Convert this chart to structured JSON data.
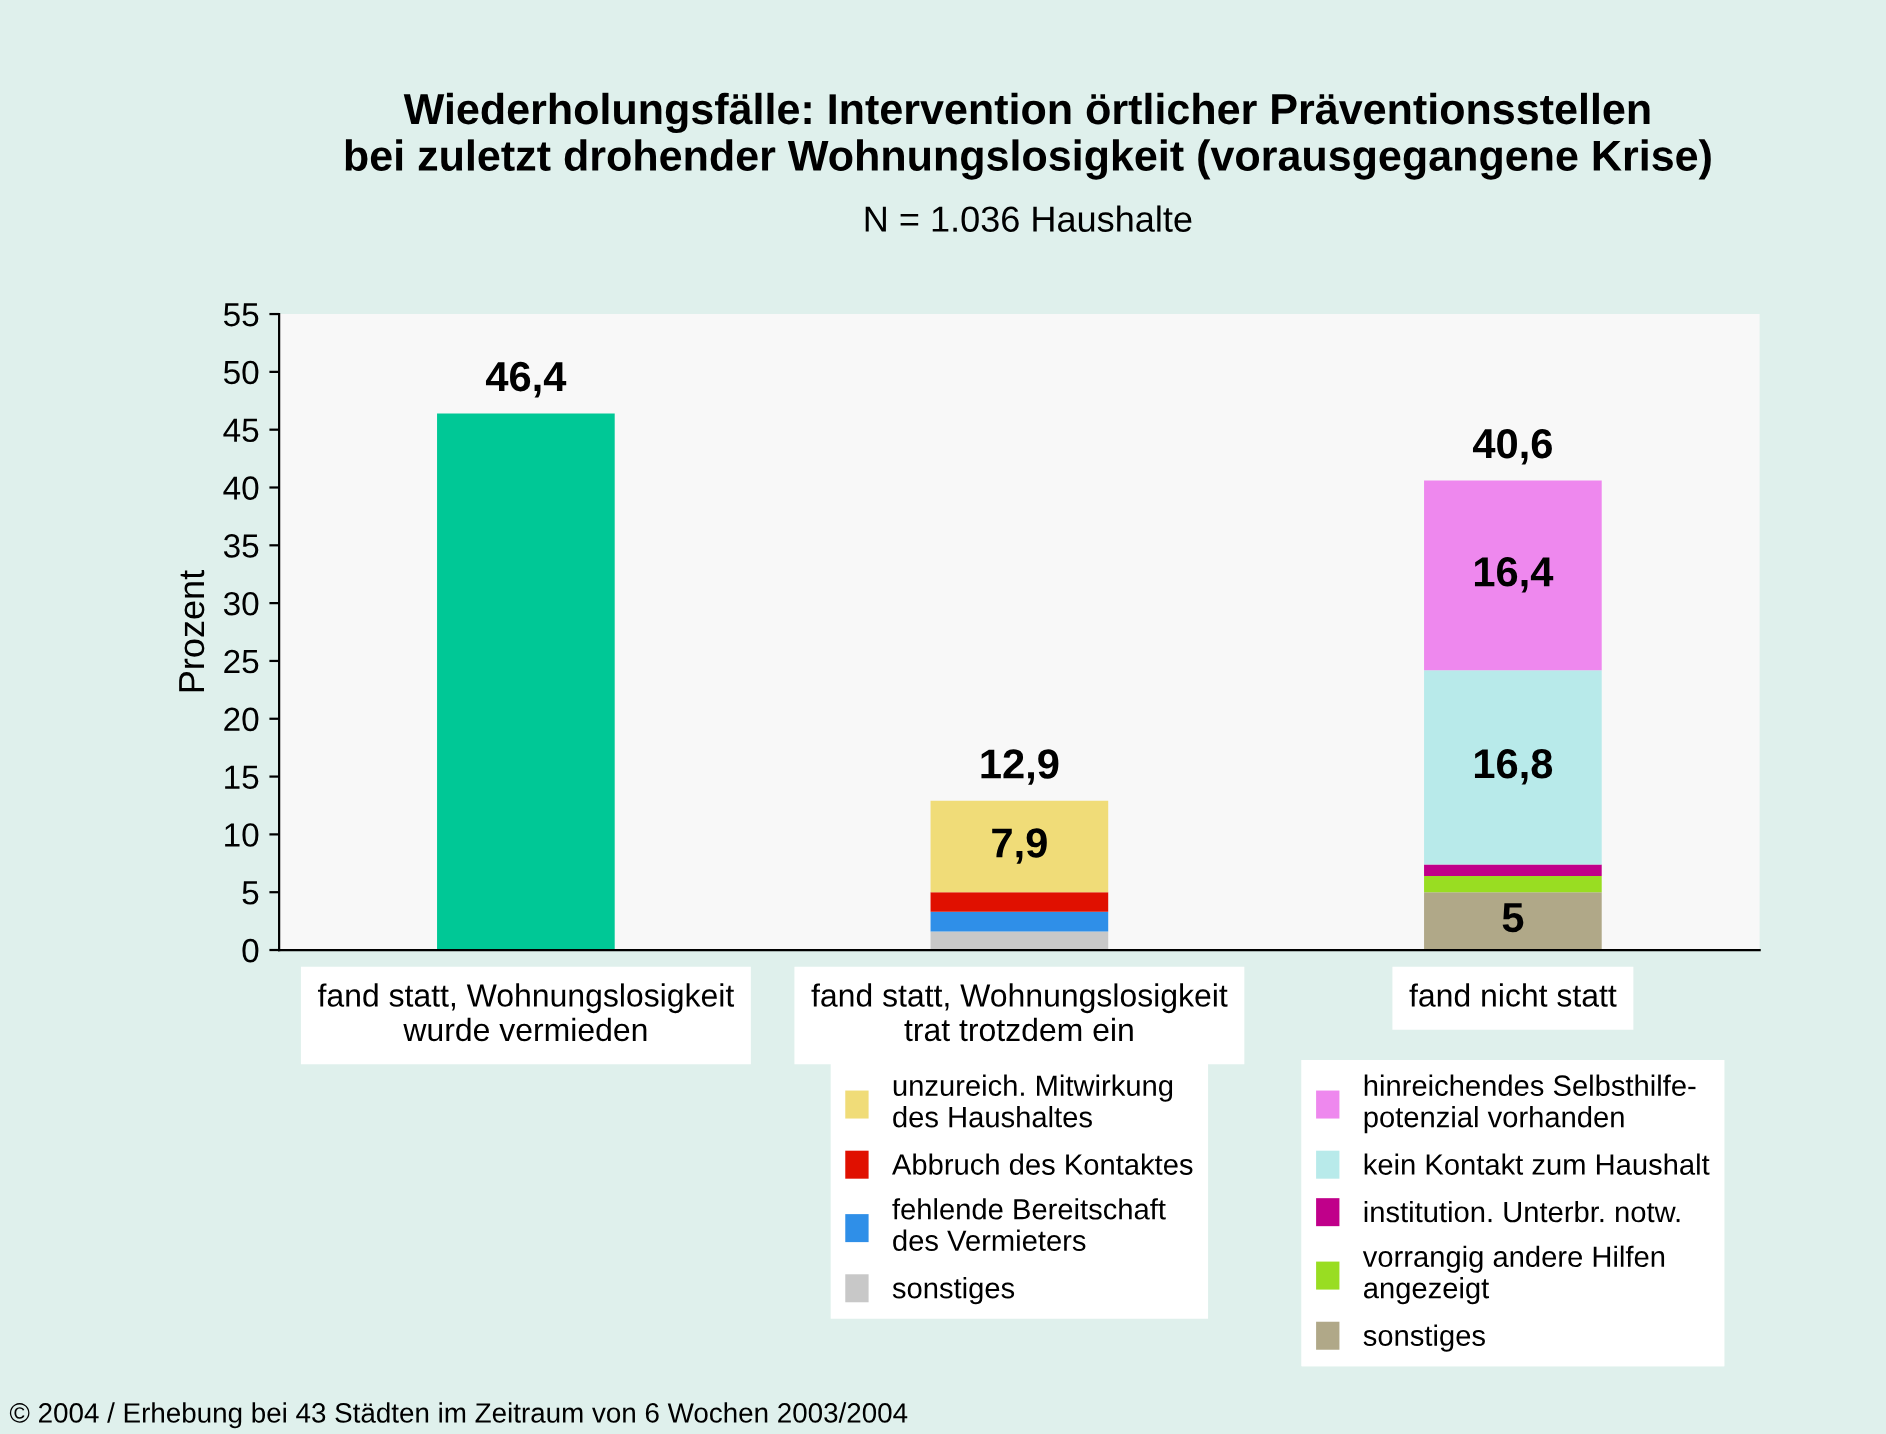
{
  "chart_data": {
    "type": "bar",
    "stacked": true,
    "title": "Wiederholungsfälle: Intervention örtlicher Präventionsstellen\nbei zuletzt drohender Wohnungslosigkeit (vorausgegangene Krise)",
    "subtitle": "N = 1.036 Haushalte",
    "ylabel": "Prozent",
    "categories": [
      "fand statt, Wohnungslosigkeit\nwurde vermieden",
      "fand statt, Wohnungslosigkeit\ntrat trotzdem ein",
      "fand nicht statt"
    ],
    "series": [
      {
        "color": "#00c896",
        "values": [
          46.4,
          null,
          null
        ]
      },
      {
        "name": "sonstiges",
        "color": "#c8c8c8",
        "values": [
          null,
          1.6,
          null
        ]
      },
      {
        "name": "fehlende Bereitschaft\ndes Vermieters",
        "color": "#2f8fe8",
        "values": [
          null,
          1.7,
          null
        ]
      },
      {
        "name": "Abbruch des Kontaktes",
        "color": "#e01000",
        "values": [
          null,
          1.7,
          null
        ]
      },
      {
        "name": "unzureich. Mitwirkung\ndes Haushaltes",
        "color": "#f0dc78",
        "values": [
          null,
          7.9,
          null
        ],
        "value_labels": [
          null,
          "7,9",
          null
        ]
      },
      {
        "name": "sonstiges",
        "color": "#b0a888",
        "values": [
          null,
          null,
          5
        ],
        "value_labels": [
          null,
          null,
          "5"
        ]
      },
      {
        "name": "vorrangig andere Hilfen\nangezeigt",
        "color": "#99dd22",
        "values": [
          null,
          null,
          1.4
        ]
      },
      {
        "name": "institution. Unterbr. notw.",
        "color": "#c0008a",
        "values": [
          null,
          null,
          1.0
        ]
      },
      {
        "name": "kein Kontakt zum Haushalt",
        "color": "#b8eaea",
        "values": [
          null,
          null,
          16.8
        ],
        "value_labels": [
          null,
          null,
          "16,8"
        ]
      },
      {
        "name": "hinreichendes Selbsthilfe-\npotenzial vorhanden",
        "color": "#ee88ee",
        "values": [
          null,
          null,
          16.4
        ],
        "value_labels": [
          null,
          null,
          "16,4"
        ]
      }
    ],
    "totals": [
      "46,4",
      "12,9",
      "40,6"
    ],
    "ylim": [
      0,
      55
    ],
    "yticks": [
      0,
      5,
      10,
      15,
      20,
      25,
      30,
      35,
      40,
      45,
      50,
      55
    ],
    "grid": false,
    "legend": "bottom",
    "annotations": [
      "© 2004 / Erhebung bei 43 Städten im Zeitraum von 6 Wochen 2003/2004"
    ]
  }
}
